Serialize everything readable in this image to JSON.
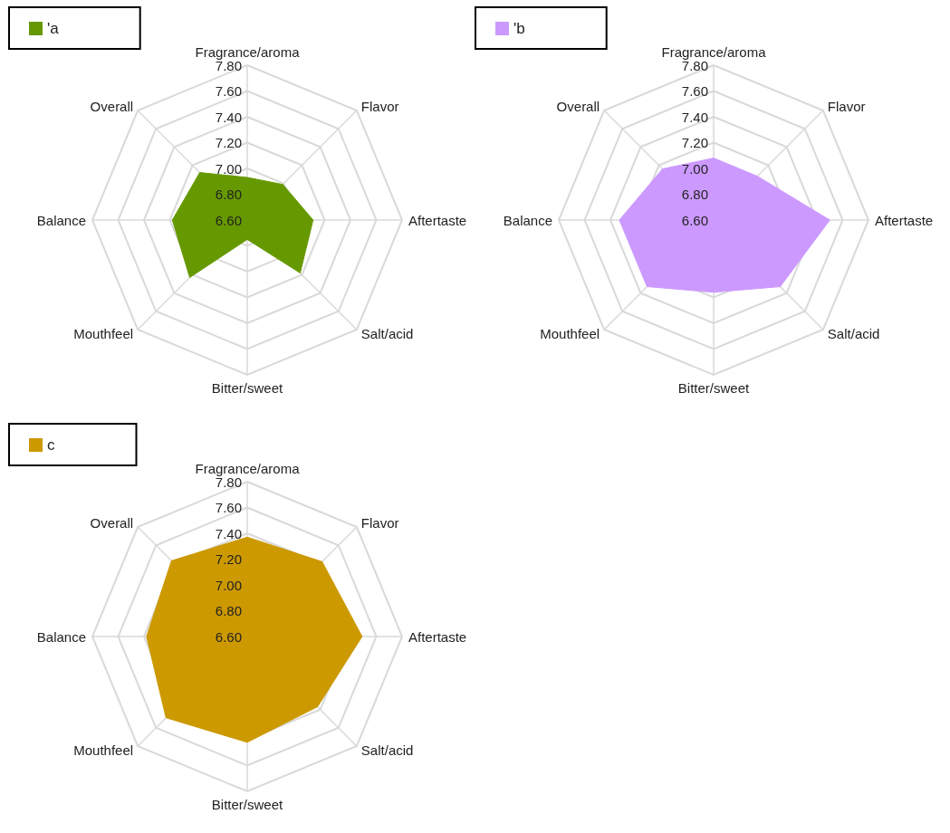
{
  "chart_data": [
    {
      "type": "radar",
      "categories": [
        "Fragrance/aroma",
        "Flavor",
        "Aftertaste",
        "Salt/acid",
        "Bitter/sweet",
        "Mouthfeel",
        "Balance",
        "Overall"
      ],
      "series": [
        {
          "name": "'a",
          "color": "#669900",
          "values": [
            6.93,
            6.99,
            7.11,
            7.18,
            6.75,
            7.23,
            7.18,
            7.12
          ]
        }
      ],
      "ylim": [
        6.6,
        7.8
      ],
      "yticks": [
        {
          "value": 6.6,
          "label": "6.60"
        },
        {
          "value": 6.8,
          "label": "6.80"
        },
        {
          "value": 7.0,
          "label": "7.00"
        },
        {
          "value": 7.2,
          "label": "7.20"
        },
        {
          "value": 7.4,
          "label": "7.40"
        },
        {
          "value": 7.6,
          "label": "7.60"
        },
        {
          "value": 7.8,
          "label": "7.80"
        }
      ],
      "legend": "top left"
    },
    {
      "type": "radar",
      "categories": [
        "Fragrance/aroma",
        "Flavor",
        "Aftertaste",
        "Salt/acid",
        "Bitter/sweet",
        "Mouthfeel",
        "Balance",
        "Overall"
      ],
      "series": [
        {
          "name": "'b",
          "color": "#cc99ff",
          "values": [
            7.08,
            7.08,
            7.5,
            7.33,
            7.16,
            7.33,
            7.33,
            7.16
          ]
        }
      ],
      "ylim": [
        6.6,
        7.8
      ],
      "yticks": [
        {
          "value": 6.6,
          "label": "6.60"
        },
        {
          "value": 6.8,
          "label": "6.80"
        },
        {
          "value": 7.0,
          "label": "7.00"
        },
        {
          "value": 7.2,
          "label": "7.20"
        },
        {
          "value": 7.4,
          "label": "7.40"
        },
        {
          "value": 7.6,
          "label": "7.60"
        },
        {
          "value": 7.8,
          "label": "7.80"
        }
      ],
      "legend": "top left"
    },
    {
      "type": "radar",
      "categories": [
        "Fragrance/aroma",
        "Flavor",
        "Aftertaste",
        "Salt/acid",
        "Bitter/sweet",
        "Mouthfeel",
        "Balance",
        "Overall"
      ],
      "series": [
        {
          "name": "c",
          "color": "#cc9900",
          "values": [
            7.37,
            7.42,
            7.49,
            7.37,
            7.42,
            7.49,
            7.38,
            7.43
          ]
        }
      ],
      "ylim": [
        6.6,
        7.8
      ],
      "yticks": [
        {
          "value": 6.6,
          "label": "6.60"
        },
        {
          "value": 6.8,
          "label": "6.80"
        },
        {
          "value": 7.0,
          "label": "7.00"
        },
        {
          "value": 7.2,
          "label": "7.20"
        },
        {
          "value": 7.4,
          "label": "7.40"
        },
        {
          "value": 7.6,
          "label": "7.60"
        },
        {
          "value": 7.8,
          "label": "7.80"
        }
      ],
      "legend": "top left"
    }
  ]
}
